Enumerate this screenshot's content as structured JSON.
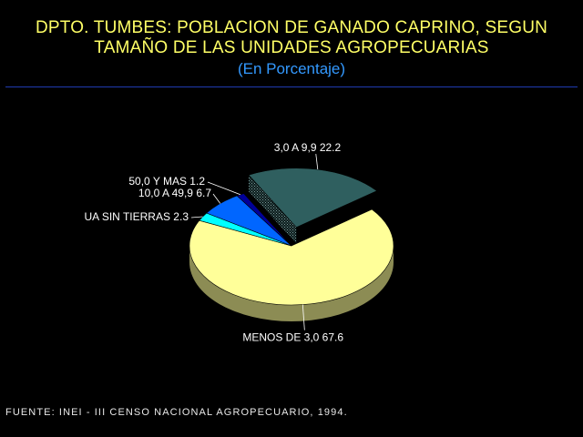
{
  "chart_data": {
    "type": "pie",
    "title_lines": [
      "DPTO. TUMBES: POBLACION DE GANADO CAPRINO, SEGUN",
      "TAMAÑO DE LAS UNIDADES AGROPECUARIAS"
    ],
    "subtitle": "(En Porcentaje)",
    "exploded": "3,0 A 9,9",
    "slices": [
      {
        "label": "MENOS DE 3,0",
        "value": 67.6,
        "value_text": "67.6",
        "color": "#ffff99"
      },
      {
        "label": "UA SIN TIERRAS",
        "value": 2.3,
        "value_text": "2.3",
        "color": "#00ffff"
      },
      {
        "label": "10,0 A 49,9",
        "value": 6.7,
        "value_text": "6.7",
        "color": "#0066ff"
      },
      {
        "label": "50,0 Y MAS",
        "value": 1.2,
        "value_text": "1.2",
        "color": "#000099"
      },
      {
        "label": "3,0 A 9,9",
        "value": 22.2,
        "value_text": "22.2",
        "color": "#2f5f5f"
      }
    ]
  },
  "source": "FUENTE: INEI - III CENSO NACIONAL AGROPECUARIO, 1994."
}
